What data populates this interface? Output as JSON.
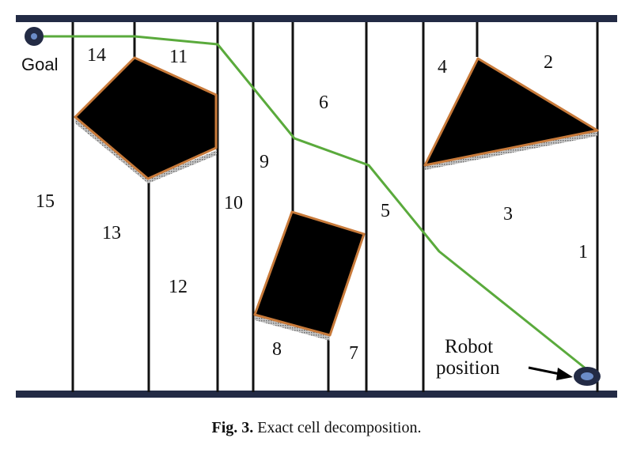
{
  "cells": [
    "1",
    "2",
    "3",
    "4",
    "5",
    "6",
    "7",
    "8",
    "9",
    "10",
    "11",
    "12",
    "13",
    "14",
    "15"
  ],
  "annotations": {
    "goal": "Goal",
    "robot_line1": "Robot",
    "robot_line2": "position"
  },
  "caption": {
    "label": "Fig. 3.",
    "text": "Exact cell decomposition."
  },
  "colors": {
    "wall": "#232b45",
    "obstacle": "#000000",
    "obstacle_edge": "#c87a3a",
    "path": "#5aaa3c",
    "robot_fill": "#6b8cc8",
    "goal_fill": "#232b45"
  }
}
